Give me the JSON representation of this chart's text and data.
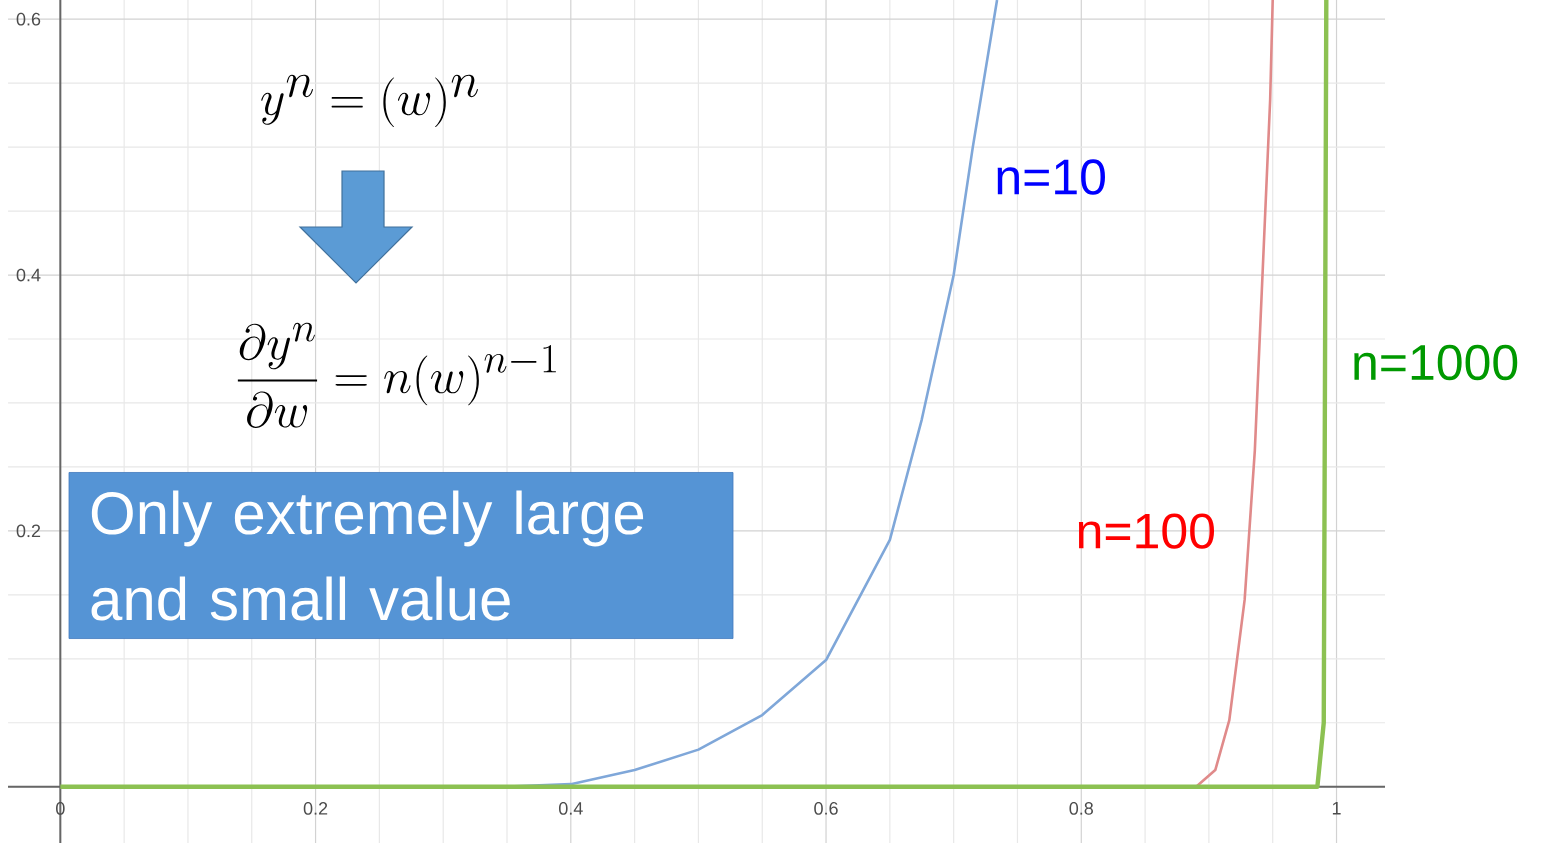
{
  "chart_data": {
    "type": "line",
    "xlim": [
      -0.041,
      1.038
    ],
    "ylim": [
      -0.044,
      0.615
    ],
    "xticks": [
      0,
      0.2,
      0.4,
      0.6,
      0.8,
      1
    ],
    "yticks": [
      {
        "value": 0,
        "label": null
      },
      0.2,
      0.4,
      0.6
    ],
    "grid": true,
    "series": [
      {
        "name": "n=10",
        "color": "#7fa7d9",
        "x": [
          0.35,
          0.4,
          0.45,
          0.5,
          0.55,
          0.6,
          0.625,
          0.65,
          0.675,
          0.7,
          0.715,
          0.734
        ],
        "values": [
          0,
          0.002,
          0.013,
          0.029,
          0.056,
          0.099,
          0.146,
          0.193,
          0.287,
          0.4,
          0.5,
          0.615
        ]
      },
      {
        "name": "n=100",
        "color": "#e08a8a",
        "x": [
          0.89,
          0.905,
          0.916,
          0.928,
          0.936,
          0.942,
          0.948,
          0.95
        ],
        "values": [
          0,
          0.013,
          0.052,
          0.146,
          0.263,
          0.4,
          0.537,
          0.615
        ]
      },
      {
        "name": "n=1000",
        "color": "#8cc152",
        "x": [
          0,
          0.985,
          0.99,
          0.992
        ],
        "values": [
          0,
          0,
          0.05,
          0.615
        ]
      }
    ],
    "annotations": [
      "y^{n} = (w)^{n}",
      "\\frac{\\partial y^{n}}{\\partial w} = n(w)^{n-1}",
      "Only extremely large and small value"
    ]
  }
}
